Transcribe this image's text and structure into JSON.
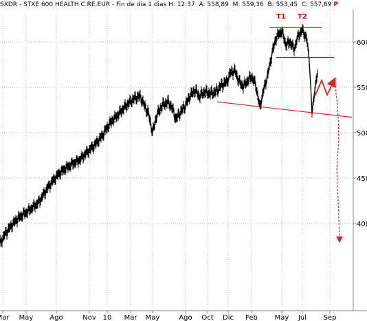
{
  "header": {
    "symbol": "SXDR - STXE 600 HEALTH C.RE.EUR",
    "period": "Fin de dia 1 dias",
    "time": "H: 12:37",
    "ask": "A: 558,89",
    "mid": "M: 559,36",
    "bid": "B: 553,45",
    "close": "C: 557,69",
    "trail": "P"
  },
  "chart_data": {
    "type": "line",
    "y_ticks": [
      "600",
      "550",
      "500",
      "450",
      "400"
    ],
    "x_ticks": [
      "Mar",
      "May",
      "Ago",
      "Nov",
      "10",
      "Mar",
      "May",
      "Ago",
      "Oct",
      "Dic",
      "Feb",
      "May",
      "Jul",
      "Sep"
    ],
    "ylim": [
      370,
      635
    ],
    "series": [
      {
        "values": [
          [
            0,
            378
          ],
          [
            8,
            389
          ],
          [
            16,
            397
          ],
          [
            24,
            404
          ],
          [
            32,
            409
          ],
          [
            40,
            413
          ],
          [
            48,
            418
          ],
          [
            56,
            423
          ],
          [
            62,
            430
          ],
          [
            70,
            440
          ],
          [
            78,
            448
          ],
          [
            86,
            455
          ],
          [
            96,
            461
          ],
          [
            106,
            466
          ],
          [
            116,
            470
          ],
          [
            126,
            478
          ],
          [
            136,
            485
          ],
          [
            144,
            492
          ],
          [
            150,
            498
          ],
          [
            156,
            506
          ],
          [
            164,
            514
          ],
          [
            172,
            520
          ],
          [
            180,
            527
          ],
          [
            188,
            533
          ],
          [
            196,
            538
          ],
          [
            204,
            540
          ],
          [
            210,
            530
          ],
          [
            216,
            521
          ],
          [
            222,
            500
          ],
          [
            228,
            519
          ],
          [
            236,
            530
          ],
          [
            244,
            534
          ],
          [
            250,
            528
          ],
          [
            256,
            515
          ],
          [
            262,
            522
          ],
          [
            270,
            530
          ],
          [
            276,
            540
          ],
          [
            284,
            547
          ],
          [
            290,
            540
          ],
          [
            298,
            545
          ],
          [
            306,
            543
          ],
          [
            314,
            545
          ],
          [
            322,
            552
          ],
          [
            330,
            556
          ],
          [
            336,
            567
          ],
          [
            342,
            568
          ],
          [
            348,
            556
          ],
          [
            354,
            551
          ],
          [
            360,
            557
          ],
          [
            366,
            562
          ],
          [
            372,
            553
          ],
          [
            378,
            528
          ],
          [
            384,
            548
          ],
          [
            390,
            565
          ],
          [
            396,
            588
          ],
          [
            402,
            605
          ],
          [
            410,
            612
          ],
          [
            416,
            597
          ],
          [
            422,
            600
          ],
          [
            428,
            592
          ],
          [
            434,
            607
          ],
          [
            440,
            613
          ],
          [
            446,
            604
          ],
          [
            450,
            581
          ],
          [
            454,
            521
          ],
          [
            458,
            548
          ],
          [
            462,
            565
          ]
        ]
      }
    ],
    "annotations": {
      "peak_labels": [
        "T1",
        "T2"
      ],
      "top_line_level": 616,
      "neckline_level": 583,
      "target_level": 400,
      "trendline_from": [
        316,
        534
      ],
      "trendline_to": [
        512,
        517
      ]
    }
  },
  "colors": {
    "price": "#000000",
    "annotation_red": "#e02020",
    "annotation_blue": "#2030c0",
    "grid": "#c0c0c0"
  }
}
